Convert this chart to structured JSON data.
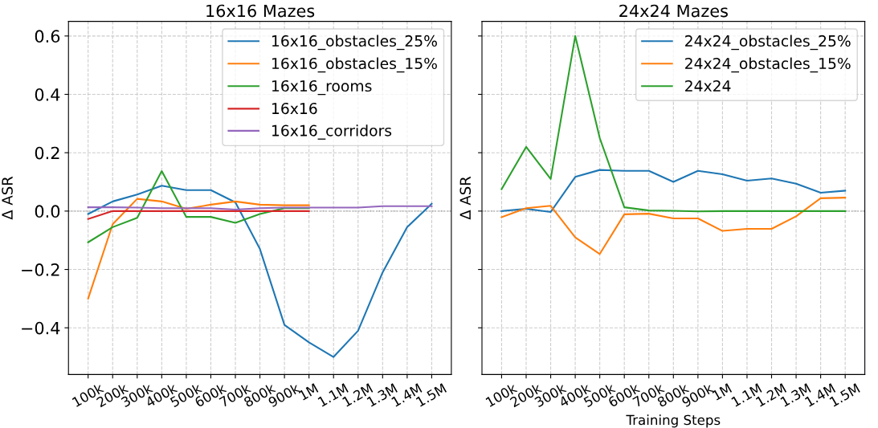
{
  "chart_data": [
    {
      "type": "line",
      "title": "16x16 Mazes",
      "ylabel": "Δ ASR",
      "categories": [
        "100k",
        "200k",
        "300k",
        "400k",
        "500k",
        "600k",
        "700k",
        "800k",
        "900k",
        "1M",
        "1.1M",
        "1.2M",
        "1.3M",
        "1.4M",
        "1.5M"
      ],
      "ylim": [
        -0.56,
        0.65
      ],
      "yticks": [
        {
          "value": -0.4,
          "label": "−0.4"
        },
        {
          "value": -0.2,
          "label": "−0.2"
        },
        {
          "value": 0,
          "label": "0.0"
        },
        {
          "value": 0.2,
          "label": "0.2"
        },
        {
          "value": 0.4,
          "label": "0.4"
        },
        {
          "value": 0.6,
          "label": "0.6"
        }
      ],
      "grid": true,
      "legend": "top right",
      "ref_lines": [
        {
          "axis": "y",
          "value": 0,
          "color": "#808080",
          "line_style": "dotted"
        }
      ],
      "series": [
        {
          "name": "16x16_obstacles_25%",
          "color": "#1f77b4",
          "values": [
            -0.01,
            0.033,
            0.057,
            0.087,
            0.072,
            0.072,
            0.03,
            -0.13,
            -0.39,
            -0.45,
            -0.5,
            -0.41,
            -0.21,
            -0.055,
            0.025
          ]
        },
        {
          "name": "16x16_obstacles_15%",
          "color": "#ff7f0e",
          "values": [
            -0.3,
            -0.045,
            0.042,
            0.033,
            0.008,
            0.022,
            0.033,
            0.022,
            0.02,
            0.02,
            null,
            null,
            null,
            null,
            null
          ]
        },
        {
          "name": "16x16_rooms",
          "color": "#2ca02c",
          "values": [
            -0.107,
            -0.055,
            -0.023,
            0.137,
            -0.02,
            -0.02,
            -0.04,
            -0.01,
            0.01,
            0.01,
            null,
            null,
            null,
            null,
            null
          ]
        },
        {
          "name": "16x16",
          "color": "#d62728",
          "values": [
            -0.027,
            0,
            0,
            0,
            0,
            0,
            0,
            0,
            0,
            0,
            null,
            null,
            null,
            null,
            null
          ]
        },
        {
          "name": "16x16_corridors",
          "color": "#9467bd",
          "values": [
            0.013,
            0.013,
            0.012,
            0.01,
            0.01,
            0.01,
            0.005,
            0.01,
            0.012,
            0.012,
            0.012,
            0.012,
            0.017,
            0.017,
            0.017
          ]
        }
      ]
    },
    {
      "type": "line",
      "title": "24x24 Mazes",
      "ylabel": "Δ ASR",
      "xlabel": "Training Steps",
      "categories": [
        "100k",
        "200k",
        "300k",
        "400k",
        "500k",
        "600k",
        "700k",
        "800k",
        "900k",
        "1M",
        "1.1M",
        "1.2M",
        "1.3M",
        "1.4M",
        "1.5M"
      ],
      "ylim": [
        -0.56,
        0.65
      ],
      "yticks": [
        -0.4,
        -0.2,
        0,
        0.2,
        0.4,
        0.6
      ],
      "tick_labels": "x",
      "grid": true,
      "legend": "top right",
      "ref_lines": [
        {
          "axis": "y",
          "value": 0,
          "color": "#808080",
          "line_style": "dotted"
        }
      ],
      "series": [
        {
          "name": "24x24_obstacles_25%",
          "color": "#1f77b4",
          "values": [
            0,
            0.008,
            -0.003,
            0.117,
            0.141,
            0.138,
            0.138,
            0.1,
            0.138,
            0.126,
            0.104,
            0.112,
            0.094,
            0.063,
            0.07
          ]
        },
        {
          "name": "24x24_obstacles_15%",
          "color": "#ff7f0e",
          "values": [
            -0.021,
            0.01,
            0.018,
            -0.09,
            -0.147,
            -0.011,
            -0.009,
            -0.025,
            -0.025,
            -0.068,
            -0.061,
            -0.061,
            -0.018,
            0.044,
            0.046
          ]
        },
        {
          "name": "24x24",
          "color": "#2ca02c",
          "values": [
            0.075,
            0.22,
            0.11,
            0.6,
            0.25,
            0.013,
            0.002,
            0.001,
            -0.001,
            0,
            0,
            0,
            0,
            0,
            0
          ]
        }
      ]
    }
  ]
}
